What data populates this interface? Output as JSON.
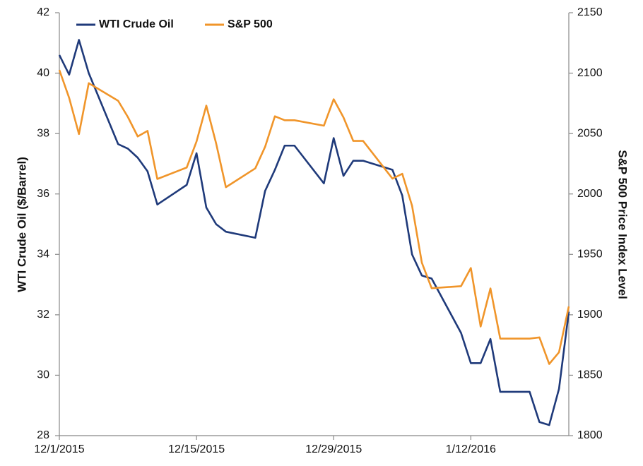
{
  "chart_data": {
    "type": "line",
    "ylabel": "WTI Crude Oil ($/Barrel)",
    "y2label": "S&P 500 Price Index Level",
    "x": [
      "12/1/2015",
      "12/2/2015",
      "12/3/2015",
      "12/4/2015",
      "12/7/2015",
      "12/8/2015",
      "12/9/2015",
      "12/10/2015",
      "12/11/2015",
      "12/14/2015",
      "12/15/2015",
      "12/16/2015",
      "12/17/2015",
      "12/18/2015",
      "12/21/2015",
      "12/22/2015",
      "12/23/2015",
      "12/24/2015",
      "12/25/2015",
      "12/28/2015",
      "12/29/2015",
      "12/30/2015",
      "12/31/2015",
      "1/1/2016",
      "1/4/2016",
      "1/5/2016",
      "1/6/2016",
      "1/7/2016",
      "1/8/2016",
      "1/11/2016",
      "1/12/2016",
      "1/13/2016",
      "1/14/2016",
      "1/15/2016",
      "1/18/2016",
      "1/19/2016",
      "1/20/2016",
      "1/21/2016",
      "1/22/2016"
    ],
    "xlim": [
      "12/1/2015",
      "1/22/2016"
    ],
    "xticks": [
      "12/1/2015",
      "12/15/2015",
      "12/29/2015",
      "1/12/2016"
    ],
    "ylim": [
      28,
      42
    ],
    "yticks": [
      28,
      30,
      32,
      34,
      36,
      38,
      40,
      42
    ],
    "y2lim": [
      1800,
      2150
    ],
    "y2ticks": [
      1800,
      1850,
      1900,
      1950,
      2000,
      2050,
      2100,
      2150
    ],
    "grid": false,
    "legend": "upper left",
    "series": [
      {
        "name": "WTI Crude Oil",
        "color": "#1f3a7a",
        "values": [
          40.6,
          39.95,
          41.1,
          40.0,
          37.65,
          37.5,
          37.2,
          36.75,
          35.65,
          36.3,
          37.35,
          35.55,
          35.0,
          34.75,
          34.55,
          36.1,
          36.8,
          37.6,
          37.6,
          36.35,
          37.85,
          36.6,
          37.1,
          37.1,
          36.8,
          35.95,
          34.0,
          33.3,
          33.2,
          31.4,
          30.4,
          30.4,
          31.2,
          29.45,
          29.45,
          28.45,
          28.35,
          29.55,
          32.1
        ]
      },
      {
        "name": "S&P 500",
        "color": "#f0952a",
        "axis": "y2",
        "values": [
          2102.6,
          2079.5,
          2049.6,
          2091.7,
          2077.1,
          2063.6,
          2047.6,
          2052.2,
          2012.4,
          2021.9,
          2043.4,
          2073.1,
          2041.9,
          2005.6,
          2021.2,
          2039.0,
          2064.3,
          2061.0,
          2061.0,
          2056.5,
          2078.4,
          2063.4,
          2043.9,
          2043.9,
          2012.7,
          2016.7,
          1990.3,
          1943.1,
          1922.0,
          1923.7,
          1938.7,
          1890.3,
          1921.8,
          1880.3,
          1880.3,
          1881.3,
          1859.3,
          1869.0,
          1906.9
        ]
      }
    ]
  }
}
